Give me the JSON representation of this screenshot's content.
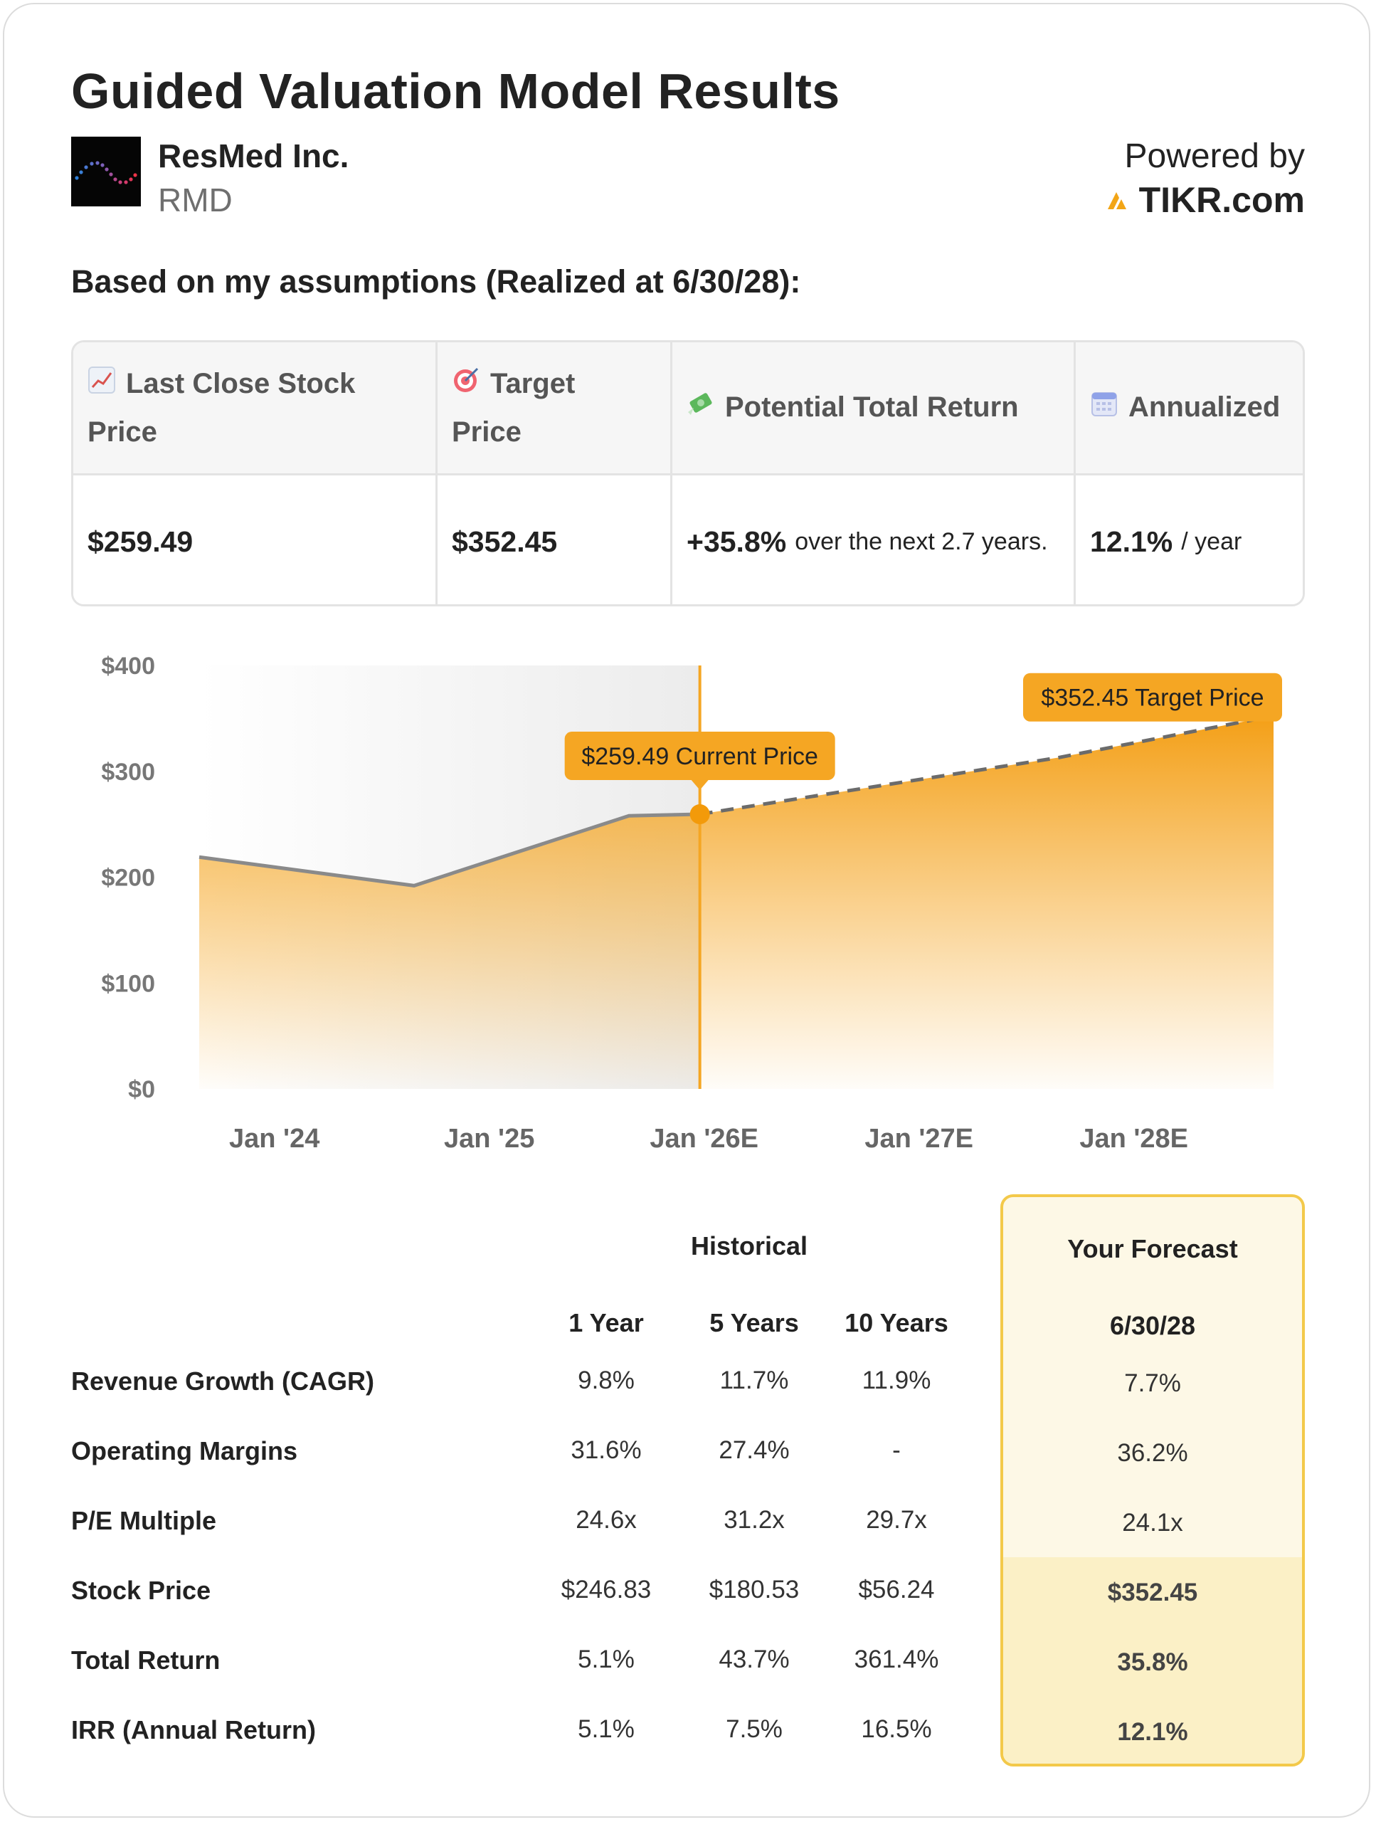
{
  "header": {
    "title": "Guided Valuation Model Results",
    "company": "ResMed Inc.",
    "ticker": "RMD",
    "powered_by": "Powered by",
    "brand": "TIKR.com",
    "brand_color": "#f2a516"
  },
  "assumption_text": "Based on my assumptions (Realized at 6/30/28):",
  "summary": {
    "headers": [
      {
        "icon": "chart-increasing-icon",
        "line1": "Last Close Stock",
        "line2": "Price"
      },
      {
        "icon": "target-icon",
        "line1": "Target",
        "line2": "Price"
      },
      {
        "icon": "money-flying-icon",
        "line1": "Potential Total Return",
        "line2": ""
      },
      {
        "icon": "calendar-icon",
        "line1": "Annualized",
        "line2": ""
      }
    ],
    "last_close": "$259.49",
    "target": "$352.45",
    "total_return": "+35.8%",
    "total_return_note": "over the next 2.7 years.",
    "annualized": "12.1%",
    "annualized_note": "/ year"
  },
  "chart_data": {
    "type": "area",
    "y_ticks": [
      "$400",
      "$300",
      "$200",
      "$100",
      "$0"
    ],
    "ylim": [
      0,
      400
    ],
    "x_ticks": [
      "Jan '24",
      "Jan '25",
      "Jan '26E",
      "Jan '27E",
      "Jan '28E"
    ],
    "historical": [
      {
        "t": 2023.5,
        "v": 219
      },
      {
        "t": 2024.5,
        "v": 192
      },
      {
        "t": 2025.5,
        "v": 258
      },
      {
        "t": 2025.83,
        "v": 259.49
      }
    ],
    "forecast": [
      {
        "t": 2025.83,
        "v": 259.49
      },
      {
        "t": 2026.5,
        "v": 281
      },
      {
        "t": 2027.5,
        "v": 313
      },
      {
        "t": 2028.5,
        "v": 352.45
      }
    ],
    "current_label": "$259.49 Current Price",
    "target_label": "$352.45 Target Price",
    "accent_color": "#f5a623",
    "line_color": "#8a8a8a"
  },
  "table": {
    "historical_label": "Historical",
    "forecast_label": "Your Forecast",
    "columns": [
      "1 Year",
      "5 Years",
      "10 Years"
    ],
    "forecast_date": "6/30/28",
    "rows": [
      {
        "label": "Revenue Growth (CAGR)",
        "values": [
          "9.8%",
          "11.7%",
          "11.9%"
        ],
        "forecast": "7.7%"
      },
      {
        "label": "Operating Margins",
        "values": [
          "31.6%",
          "27.4%",
          "-"
        ],
        "forecast": "36.2%"
      },
      {
        "label": "P/E Multiple",
        "values": [
          "24.6x",
          "31.2x",
          "29.7x"
        ],
        "forecast": "24.1x"
      },
      {
        "label": "Stock Price",
        "values": [
          "$246.83",
          "$180.53",
          "$56.24"
        ],
        "forecast": "$352.45"
      },
      {
        "label": "Total Return",
        "values": [
          "5.1%",
          "43.7%",
          "361.4%"
        ],
        "forecast": "35.8%"
      },
      {
        "label": "IRR (Annual Return)",
        "values": [
          "5.1%",
          "7.5%",
          "16.5%"
        ],
        "forecast": "12.1%"
      }
    ]
  }
}
